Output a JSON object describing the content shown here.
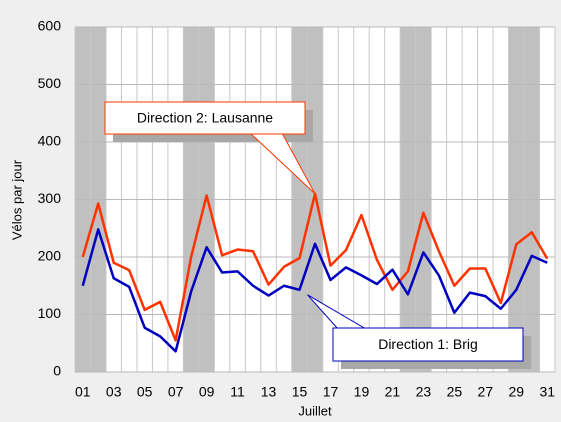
{
  "chart_data": {
    "type": "line",
    "x_label": "Juillet",
    "y_label": "Vélos par jour",
    "categories": [
      "01",
      null,
      "03",
      null,
      "05",
      null,
      "07",
      null,
      "09",
      null,
      "11",
      null,
      "13",
      null,
      "15",
      null,
      "17",
      null,
      "19",
      null,
      "21",
      null,
      "23",
      null,
      "25",
      null,
      "27",
      null,
      "29",
      null,
      "31"
    ],
    "series": [
      {
        "name": "Direction 2: Lausanne",
        "color": "#ff3300",
        "values": [
          200,
          293,
          190,
          177,
          108,
          122,
          55,
          200,
          307,
          203,
          213,
          210,
          152,
          183,
          198,
          310,
          185,
          212,
          273,
          195,
          143,
          175,
          277,
          210,
          150,
          180,
          180,
          120,
          222,
          243,
          197
        ]
      },
      {
        "name": "Direction 1: Brig",
        "color": "#0000c0",
        "values": [
          150,
          248,
          163,
          148,
          77,
          62,
          36,
          140,
          217,
          173,
          175,
          150,
          133,
          150,
          143,
          223,
          160,
          182,
          168,
          153,
          178,
          135,
          208,
          168,
          103,
          138,
          132,
          110,
          143,
          202,
          190
        ]
      }
    ],
    "ylim": [
      0,
      600
    ],
    "yticks": [
      0,
      100,
      200,
      300,
      400,
      500,
      600
    ],
    "grid": true
  }
}
